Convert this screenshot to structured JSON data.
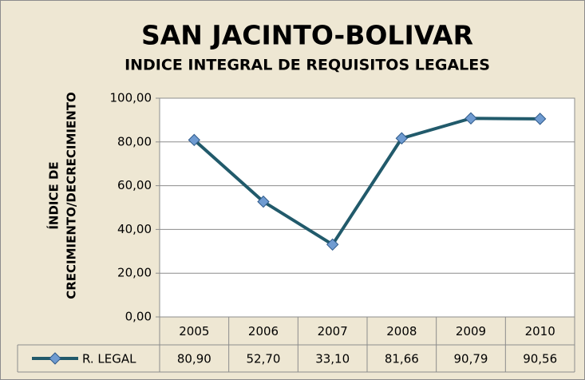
{
  "chart_data": {
    "type": "line",
    "title": "SAN JACINTO-BOLIVAR",
    "subtitle": "INDICE INTEGRAL DE REQUISITOS LEGALES",
    "y_label": [
      "ÍNDICE DE",
      "CRECIMIENTO/DECRECIMIENTO"
    ],
    "categories": [
      "2005",
      "2006",
      "2007",
      "2008",
      "2009",
      "2010"
    ],
    "series": [
      {
        "name": "R. LEGAL",
        "color": "#215a6b",
        "marker_color": "#6f9bd1",
        "values": [
          80.9,
          52.7,
          33.1,
          81.66,
          90.79,
          90.56
        ],
        "value_labels": [
          "80,90",
          "52,70",
          "33,10",
          "81,66",
          "90,79",
          "90,56"
        ]
      }
    ],
    "ylim": [
      0,
      100
    ],
    "yticks": [
      {
        "value": 0,
        "label": "0,00"
      },
      {
        "value": 20,
        "label": "20,00"
      },
      {
        "value": 40,
        "label": "40,00"
      },
      {
        "value": 60,
        "label": "60,00"
      },
      {
        "value": 80,
        "label": "80,00"
      },
      {
        "value": 100,
        "label": "100,00"
      }
    ],
    "grid": true
  }
}
